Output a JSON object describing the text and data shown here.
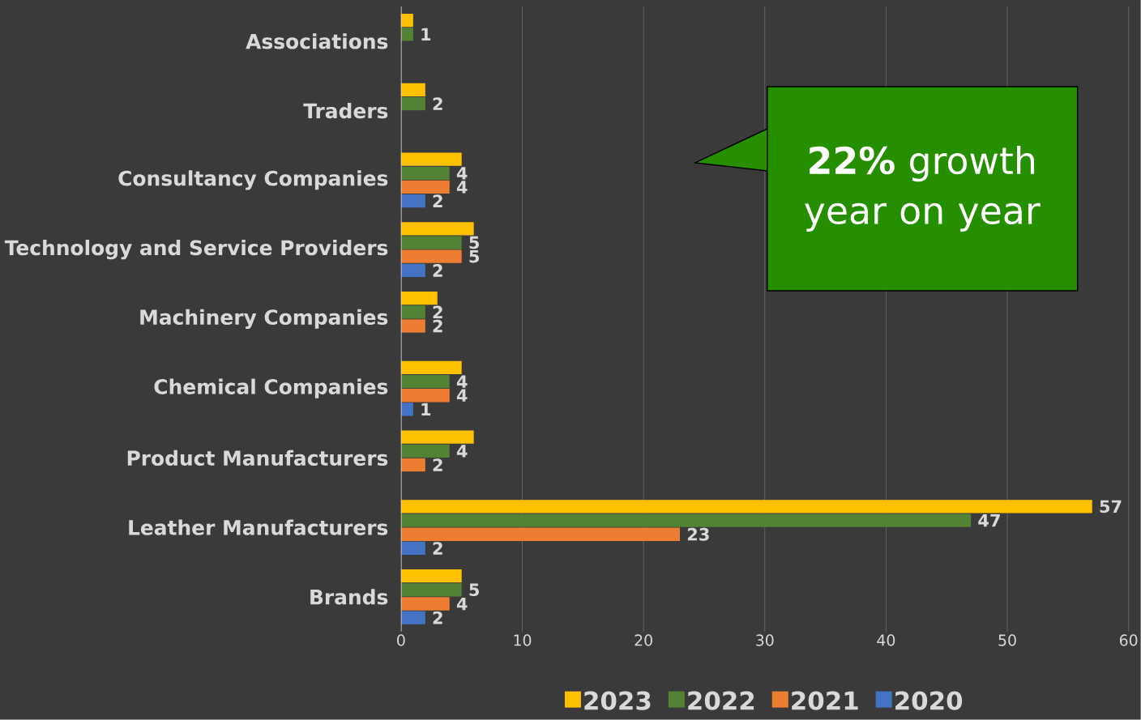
{
  "chart_data": {
    "type": "bar",
    "orientation": "horizontal",
    "categories": [
      "Associations",
      "Traders",
      "Consultancy Companies",
      "Technology and Service Providers",
      "Machinery Companies",
      "Chemical Companies",
      "Product Manufacturers",
      "Leather Manufacturers",
      "Brands"
    ],
    "series": [
      {
        "name": "2023",
        "color": "#ffc000",
        "values": [
          1,
          2,
          5,
          6,
          3,
          5,
          6,
          57,
          5
        ],
        "value_labels": [
          null,
          null,
          null,
          null,
          null,
          null,
          null,
          "57",
          null
        ]
      },
      {
        "name": "2022",
        "color": "#548235",
        "values": [
          1,
          2,
          4,
          5,
          2,
          4,
          4,
          47,
          5
        ],
        "value_labels": [
          "1",
          "2",
          "4",
          "5",
          "2",
          "4",
          "4",
          "47",
          "5"
        ]
      },
      {
        "name": "2021",
        "color": "#ed7d31",
        "values": [
          null,
          null,
          4,
          5,
          2,
          4,
          2,
          23,
          4
        ],
        "value_labels": [
          null,
          null,
          "4",
          "5",
          "2",
          "4",
          "2",
          "23",
          "4"
        ]
      },
      {
        "name": "2020",
        "color": "#4472c4",
        "values": [
          null,
          null,
          2,
          2,
          null,
          1,
          null,
          2,
          2
        ],
        "value_labels": [
          null,
          null,
          "2",
          "2",
          null,
          "1",
          null,
          "2",
          "2"
        ]
      }
    ],
    "xlim": [
      0,
      60
    ],
    "xticks": [
      0,
      10,
      20,
      30,
      40,
      50,
      60
    ],
    "grid": "x",
    "legend": "bottom",
    "annotations": [
      "**22%** growth year on year"
    ]
  }
}
